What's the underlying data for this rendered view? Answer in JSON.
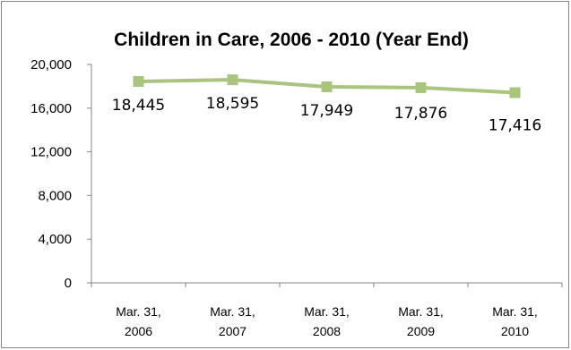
{
  "chart_data": {
    "type": "line",
    "title": "Children in Care, 2006 - 2010 (Year End)",
    "categories": [
      [
        "Mar. 31,",
        "2006"
      ],
      [
        "Mar. 31,",
        "2007"
      ],
      [
        "Mar. 31,",
        "2008"
      ],
      [
        "Mar. 31,",
        "2009"
      ],
      [
        "Mar. 31,",
        "2010"
      ]
    ],
    "series": [
      {
        "values": [
          18445,
          18595,
          17949,
          17876,
          17416
        ],
        "color": "#a9c47f"
      }
    ],
    "data_labels": [
      "18,445",
      "18,595",
      "17,949",
      "17,876",
      "17,416"
    ],
    "y_ticks": [
      {
        "value": 0,
        "label": "0"
      },
      {
        "value": 4000,
        "label": "4,000"
      },
      {
        "value": 8000,
        "label": "8,000"
      },
      {
        "value": 12000,
        "label": "12,000"
      },
      {
        "value": 16000,
        "label": "16,000"
      },
      {
        "value": 20000,
        "label": "20,000"
      }
    ],
    "ylim": [
      0,
      20000
    ],
    "grid": false,
    "marker": "square"
  }
}
